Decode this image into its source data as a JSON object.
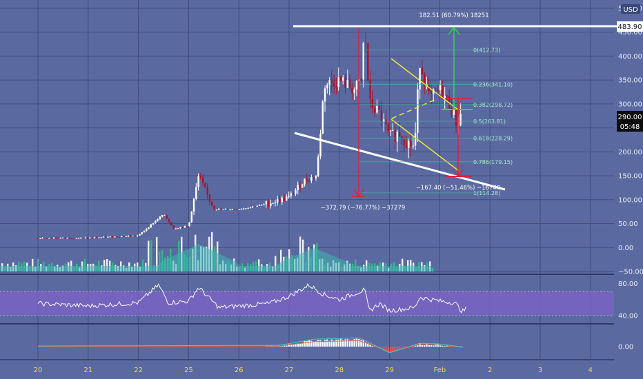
{
  "currency_label": "USD",
  "price_tags": {
    "top_level": "483.90",
    "last_price": "290.00",
    "countdown": "05:48"
  },
  "annotations": {
    "top_measure": "182.51 (60.79%) 18251",
    "crash_measure": "−372.79 (−76.77%) −37279",
    "bottom_measure": "−167.40 (−51.46%) −16740"
  },
  "fib_labels": [
    "0(412.73)",
    "0.236(341.10)",
    "0.382(298.72)",
    "0.5(263.81)",
    "0.618(228.29)",
    "0.786(179.15)",
    "1(114.28)"
  ],
  "chart_data": [
    {
      "type": "candlestick",
      "pane": "price",
      "yaxis_ticks": [
        "500.00",
        "450.00",
        "400.00",
        "350.00",
        "300.00",
        "250.00",
        "200.00",
        "150.00",
        "100.00",
        "50.00",
        "0.00",
        "−50.00"
      ],
      "ylim": [
        -50,
        510
      ],
      "x_ticks": [
        "20",
        "21",
        "22",
        "25",
        "26",
        "27",
        "28",
        "29",
        "Feb",
        "2",
        "3",
        "4"
      ],
      "levels": {
        "top_line": 483.9,
        "last_price": 290,
        "fib": [
          412.73,
          341.1,
          298.72,
          263.81,
          228.29,
          179.15,
          114.28
        ]
      },
      "price_path": [
        {
          "d": 0,
          "p": 20
        },
        {
          "d": 1,
          "p": 20
        },
        {
          "d": 2,
          "p": 25
        },
        {
          "d": 2.5,
          "p": 70
        },
        {
          "d": 2.7,
          "p": 40
        },
        {
          "d": 3,
          "p": 45
        },
        {
          "d": 3.2,
          "p": 150
        },
        {
          "d": 3.5,
          "p": 80
        },
        {
          "d": 4,
          "p": 80
        },
        {
          "d": 4.5,
          "p": 90
        },
        {
          "d": 5,
          "p": 105
        },
        {
          "d": 5.3,
          "p": 140
        },
        {
          "d": 5.55,
          "p": 150
        },
        {
          "d": 5.7,
          "p": 340
        },
        {
          "d": 6,
          "p": 350
        },
        {
          "d": 6.3,
          "p": 330
        },
        {
          "d": 6.45,
          "p": 350
        },
        {
          "d": 6.5,
          "p": 470
        },
        {
          "d": 6.6,
          "p": 300
        },
        {
          "d": 6.8,
          "p": 280
        },
        {
          "d": 7,
          "p": 230
        },
        {
          "d": 7.2,
          "p": 240
        },
        {
          "d": 7.35,
          "p": 220
        },
        {
          "d": 7.5,
          "p": 210
        },
        {
          "d": 7.6,
          "p": 390
        },
        {
          "d": 7.8,
          "p": 310
        },
        {
          "d": 8,
          "p": 330
        },
        {
          "d": 8.2,
          "p": 300
        },
        {
          "d": 8.35,
          "p": 255
        },
        {
          "d": 8.45,
          "p": 290
        }
      ]
    },
    {
      "type": "line",
      "pane": "rsi",
      "yaxis_ticks": [
        "80.00",
        "40.00"
      ],
      "ylim": [
        30,
        95
      ],
      "band": [
        40,
        70
      ],
      "rsi_path": [
        {
          "d": 0,
          "v": 55
        },
        {
          "d": 1,
          "v": 52
        },
        {
          "d": 2,
          "v": 56
        },
        {
          "d": 2.4,
          "v": 78
        },
        {
          "d": 2.6,
          "v": 56
        },
        {
          "d": 3,
          "v": 58
        },
        {
          "d": 3.2,
          "v": 75
        },
        {
          "d": 3.6,
          "v": 50
        },
        {
          "d": 4,
          "v": 52
        },
        {
          "d": 4.6,
          "v": 55
        },
        {
          "d": 5,
          "v": 64
        },
        {
          "d": 5.4,
          "v": 78
        },
        {
          "d": 5.7,
          "v": 66
        },
        {
          "d": 6,
          "v": 60
        },
        {
          "d": 6.5,
          "v": 72
        },
        {
          "d": 6.6,
          "v": 46
        },
        {
          "d": 6.8,
          "v": 55
        },
        {
          "d": 7,
          "v": 46
        },
        {
          "d": 7.5,
          "v": 50
        },
        {
          "d": 7.6,
          "v": 63
        },
        {
          "d": 8,
          "v": 58
        },
        {
          "d": 8.3,
          "v": 56
        },
        {
          "d": 8.45,
          "v": 45
        },
        {
          "d": 8.55,
          "v": 50
        }
      ]
    },
    {
      "type": "bar",
      "pane": "macd",
      "yaxis_ticks": [
        "0.00"
      ],
      "ylim": [
        -30,
        30
      ],
      "macd_path": [
        {
          "d": 0,
          "v": 0
        },
        {
          "d": 4.8,
          "v": 1
        },
        {
          "d": 5.5,
          "v": 10
        },
        {
          "d": 6.4,
          "v": 12
        },
        {
          "d": 7,
          "v": -10
        },
        {
          "d": 7.3,
          "v": -3
        },
        {
          "d": 7.6,
          "v": 4
        },
        {
          "d": 8,
          "v": 3
        },
        {
          "d": 8.5,
          "v": -2
        }
      ]
    }
  ]
}
